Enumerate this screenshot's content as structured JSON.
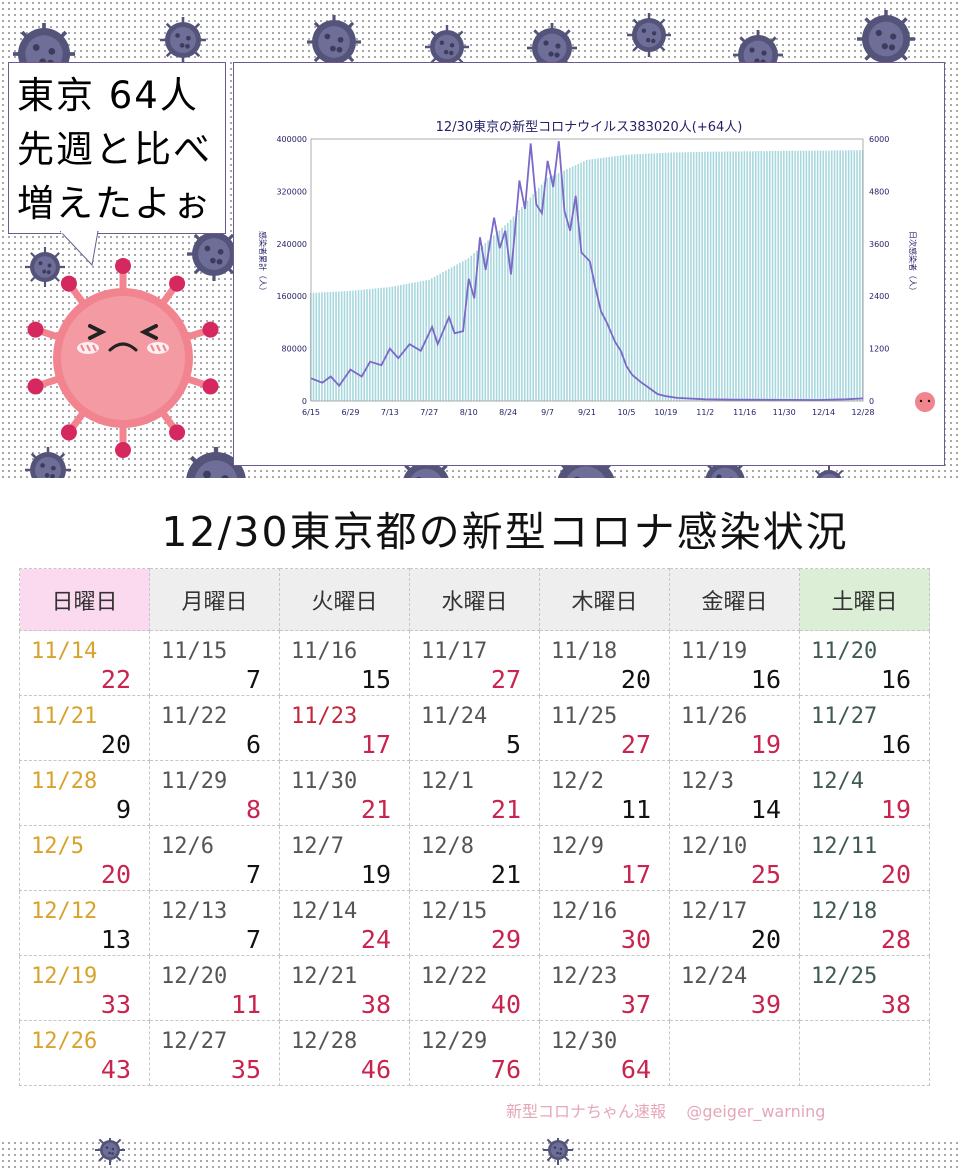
{
  "speech": {
    "lines": [
      "東京 64人",
      "先週と比べ",
      "増えたよぉ"
    ]
  },
  "chart_data": {
    "type": "bar+line",
    "title": "12/30東京の新型コロナウイルス383020人(+64人)",
    "ylabel_left": "感染者累計（人）",
    "ylabel_right": "日次感染者（人）",
    "x_ticks": [
      "6/15",
      "6/29",
      "7/13",
      "7/27",
      "8/10",
      "8/24",
      "9/7",
      "9/21",
      "10/5",
      "10/19",
      "11/2",
      "11/16",
      "11/30",
      "12/14",
      "12/28"
    ],
    "y_left_ticks": [
      "0",
      "80000",
      "160000",
      "240000",
      "320000",
      "400000"
    ],
    "y_right_ticks": [
      "0",
      "1200",
      "2400",
      "3600",
      "4800",
      "6000"
    ],
    "ylim_left": [
      0,
      400000
    ],
    "ylim_right": [
      0,
      6000
    ],
    "series": [
      {
        "name": "感染者累計",
        "kind": "bar",
        "color": "#a8d8de",
        "points": [
          [
            0,
            165000
          ],
          [
            14,
            168000
          ],
          [
            28,
            174000
          ],
          [
            42,
            185000
          ],
          [
            56,
            218000
          ],
          [
            70,
            272000
          ],
          [
            84,
            340000
          ],
          [
            98,
            368000
          ],
          [
            112,
            376000
          ],
          [
            126,
            379000
          ],
          [
            140,
            380500
          ],
          [
            154,
            381200
          ],
          [
            168,
            381800
          ],
          [
            182,
            382300
          ],
          [
            196,
            383020
          ]
        ]
      },
      {
        "name": "日次感染者",
        "kind": "line",
        "color": "#7b68c8",
        "points": [
          [
            0,
            520
          ],
          [
            4,
            420
          ],
          [
            7,
            560
          ],
          [
            10,
            350
          ],
          [
            14,
            720
          ],
          [
            18,
            560
          ],
          [
            21,
            900
          ],
          [
            25,
            820
          ],
          [
            28,
            1200
          ],
          [
            31,
            980
          ],
          [
            35,
            1300
          ],
          [
            39,
            1150
          ],
          [
            43,
            1700
          ],
          [
            45,
            1300
          ],
          [
            49,
            1920
          ],
          [
            51,
            1550
          ],
          [
            54,
            1600
          ],
          [
            56,
            2800
          ],
          [
            58,
            2350
          ],
          [
            60,
            3750
          ],
          [
            62,
            3000
          ],
          [
            65,
            4200
          ],
          [
            67,
            3500
          ],
          [
            69,
            3900
          ],
          [
            71,
            2900
          ],
          [
            74,
            5050
          ],
          [
            76,
            4400
          ],
          [
            78,
            5900
          ],
          [
            80,
            4500
          ],
          [
            82,
            4300
          ],
          [
            84,
            5500
          ],
          [
            86,
            4900
          ],
          [
            88,
            5950
          ],
          [
            90,
            4350
          ],
          [
            92,
            3900
          ],
          [
            94,
            4700
          ],
          [
            96,
            3400
          ],
          [
            99,
            3200
          ],
          [
            101,
            2600
          ],
          [
            103,
            2050
          ],
          [
            105,
            1800
          ],
          [
            108,
            1350
          ],
          [
            110,
            1150
          ],
          [
            112,
            800
          ],
          [
            114,
            600
          ],
          [
            117,
            440
          ],
          [
            120,
            300
          ],
          [
            123,
            160
          ],
          [
            126,
            110
          ],
          [
            130,
            70
          ],
          [
            140,
            40
          ],
          [
            150,
            30
          ],
          [
            160,
            28
          ],
          [
            170,
            25
          ],
          [
            180,
            24
          ],
          [
            190,
            38
          ],
          [
            196,
            60
          ]
        ]
      }
    ]
  },
  "calendar": {
    "title": "12/30東京都の新型コロナ感染状況",
    "days": [
      "日曜日",
      "月曜日",
      "火曜日",
      "水曜日",
      "木曜日",
      "金曜日",
      "土曜日"
    ],
    "weeks": [
      [
        {
          "d": "11/14",
          "n": "22",
          "up": true
        },
        {
          "d": "11/15",
          "n": "7",
          "up": false
        },
        {
          "d": "11/16",
          "n": "15",
          "up": false
        },
        {
          "d": "11/17",
          "n": "27",
          "up": true
        },
        {
          "d": "11/18",
          "n": "20",
          "up": false
        },
        {
          "d": "11/19",
          "n": "16",
          "up": false
        },
        {
          "d": "11/20",
          "n": "16",
          "up": false
        }
      ],
      [
        {
          "d": "11/21",
          "n": "20",
          "up": false
        },
        {
          "d": "11/22",
          "n": "6",
          "up": false
        },
        {
          "d": "11/23",
          "n": "17",
          "up": true,
          "hol": true
        },
        {
          "d": "11/24",
          "n": "5",
          "up": false
        },
        {
          "d": "11/25",
          "n": "27",
          "up": true
        },
        {
          "d": "11/26",
          "n": "19",
          "up": true
        },
        {
          "d": "11/27",
          "n": "16",
          "up": false
        }
      ],
      [
        {
          "d": "11/28",
          "n": "9",
          "up": false
        },
        {
          "d": "11/29",
          "n": "8",
          "up": true
        },
        {
          "d": "11/30",
          "n": "21",
          "up": true
        },
        {
          "d": "12/1",
          "n": "21",
          "up": true
        },
        {
          "d": "12/2",
          "n": "11",
          "up": false
        },
        {
          "d": "12/3",
          "n": "14",
          "up": false
        },
        {
          "d": "12/4",
          "n": "19",
          "up": true
        }
      ],
      [
        {
          "d": "12/5",
          "n": "20",
          "up": true
        },
        {
          "d": "12/6",
          "n": "7",
          "up": false
        },
        {
          "d": "12/7",
          "n": "19",
          "up": false
        },
        {
          "d": "12/8",
          "n": "21",
          "up": false
        },
        {
          "d": "12/9",
          "n": "17",
          "up": true
        },
        {
          "d": "12/10",
          "n": "25",
          "up": true
        },
        {
          "d": "12/11",
          "n": "20",
          "up": true
        }
      ],
      [
        {
          "d": "12/12",
          "n": "13",
          "up": false
        },
        {
          "d": "12/13",
          "n": "7",
          "up": false
        },
        {
          "d": "12/14",
          "n": "24",
          "up": true
        },
        {
          "d": "12/15",
          "n": "29",
          "up": true
        },
        {
          "d": "12/16",
          "n": "30",
          "up": true
        },
        {
          "d": "12/17",
          "n": "20",
          "up": false
        },
        {
          "d": "12/18",
          "n": "28",
          "up": true
        }
      ],
      [
        {
          "d": "12/19",
          "n": "33",
          "up": true
        },
        {
          "d": "12/20",
          "n": "11",
          "up": true
        },
        {
          "d": "12/21",
          "n": "38",
          "up": true
        },
        {
          "d": "12/22",
          "n": "40",
          "up": true
        },
        {
          "d": "12/23",
          "n": "37",
          "up": true
        },
        {
          "d": "12/24",
          "n": "39",
          "up": true
        },
        {
          "d": "12/25",
          "n": "38",
          "up": true
        }
      ],
      [
        {
          "d": "12/26",
          "n": "43",
          "up": true
        },
        {
          "d": "12/27",
          "n": "35",
          "up": true
        },
        {
          "d": "12/28",
          "n": "46",
          "up": true
        },
        {
          "d": "12/29",
          "n": "76",
          "up": true
        },
        {
          "d": "12/30",
          "n": "64",
          "up": true
        },
        {
          "d": "",
          "n": "",
          "up": false
        },
        {
          "d": "",
          "n": "",
          "up": false
        }
      ]
    ]
  },
  "footer": {
    "source": "新型コロナちゃん速報",
    "handle": "@geiger_warning"
  },
  "colors": {
    "virus_body": "#54547a",
    "mascot_body": "#f2848f",
    "positive_number": "#c8244e",
    "sunday_date": "#d9a22c",
    "saturday_date": "#3f5a4f"
  }
}
